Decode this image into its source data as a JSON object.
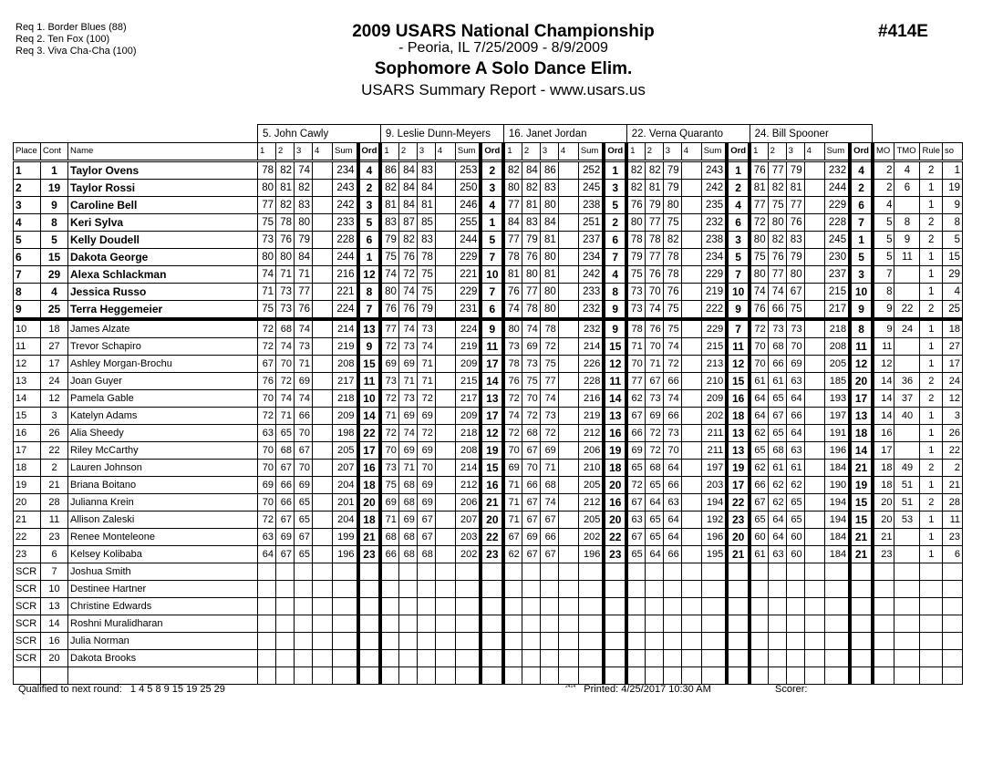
{
  "requirements": [
    "Req  1.  Border Blues (88)",
    "Req  2.  Ten Fox (100)",
    "Req  3.  Viva Cha-Cha (100)"
  ],
  "header": {
    "title": "2009 USARS National Championship",
    "location_dates": "- Peoria, IL  7/25/2009 - 8/9/2009",
    "event": "Sophomore A Solo Dance Elim.",
    "report": "USARS Summary Report - www.usars.us",
    "event_number": "#414E"
  },
  "judges": [
    "5.  John  Cawly",
    "9.  Leslie Dunn-Meyers",
    "16.  Janet Jordan",
    "22.  Verna Quaranto",
    "24.  Bill Spooner"
  ],
  "columns": {
    "place": "Place",
    "cont": "Cont",
    "name": "Name",
    "judge_cols": [
      "1",
      "2",
      "3",
      "4",
      "Sum",
      "Ord"
    ],
    "mo": "MO",
    "tmo": "TMO",
    "rule": "Rule",
    "so": "so"
  },
  "rows": [
    {
      "place": "1",
      "cont": "1",
      "name": "Taylor Ovens",
      "scores": [
        [
          78,
          82,
          74,
          234,
          4
        ],
        [
          86,
          84,
          83,
          253,
          2
        ],
        [
          82,
          84,
          86,
          252,
          1
        ],
        [
          82,
          82,
          79,
          243,
          1
        ],
        [
          76,
          77,
          79,
          232,
          4
        ]
      ],
      "mo": "2",
      "tmo": "4",
      "rule": "2",
      "so": "1"
    },
    {
      "place": "2",
      "cont": "19",
      "name": "Taylor Rossi",
      "scores": [
        [
          80,
          81,
          82,
          243,
          2
        ],
        [
          82,
          84,
          84,
          250,
          3
        ],
        [
          80,
          82,
          83,
          245,
          3
        ],
        [
          82,
          81,
          79,
          242,
          2
        ],
        [
          81,
          82,
          81,
          244,
          2
        ]
      ],
      "mo": "2",
      "tmo": "6",
      "rule": "1",
      "so": "19"
    },
    {
      "place": "3",
      "cont": "9",
      "name": "Caroline Bell",
      "scores": [
        [
          77,
          82,
          83,
          242,
          3
        ],
        [
          81,
          84,
          81,
          246,
          4
        ],
        [
          77,
          81,
          80,
          238,
          5
        ],
        [
          76,
          79,
          80,
          235,
          4
        ],
        [
          77,
          75,
          77,
          229,
          6
        ]
      ],
      "mo": "4",
      "tmo": "",
      "rule": "1",
      "so": "9"
    },
    {
      "place": "4",
      "cont": "8",
      "name": "Keri Sylva",
      "scores": [
        [
          75,
          78,
          80,
          233,
          5
        ],
        [
          83,
          87,
          85,
          255,
          1
        ],
        [
          84,
          83,
          84,
          251,
          2
        ],
        [
          80,
          77,
          75,
          232,
          6
        ],
        [
          72,
          80,
          76,
          228,
          7
        ]
      ],
      "mo": "5",
      "tmo": "8",
      "rule": "2",
      "so": "8"
    },
    {
      "place": "5",
      "cont": "5",
      "name": "Kelly Doudell",
      "scores": [
        [
          73,
          76,
          79,
          228,
          6
        ],
        [
          79,
          82,
          83,
          244,
          5
        ],
        [
          77,
          79,
          81,
          237,
          6
        ],
        [
          78,
          78,
          82,
          238,
          3
        ],
        [
          80,
          82,
          83,
          245,
          1
        ]
      ],
      "mo": "5",
      "tmo": "9",
      "rule": "2",
      "so": "5"
    },
    {
      "place": "6",
      "cont": "15",
      "name": "Dakota George",
      "scores": [
        [
          80,
          80,
          84,
          244,
          1
        ],
        [
          75,
          76,
          78,
          229,
          7
        ],
        [
          78,
          76,
          80,
          234,
          7
        ],
        [
          79,
          77,
          78,
          234,
          5
        ],
        [
          75,
          76,
          79,
          230,
          5
        ]
      ],
      "mo": "5",
      "tmo": "11",
      "rule": "1",
      "so": "15"
    },
    {
      "place": "7",
      "cont": "29",
      "name": "Alexa Schlackman",
      "scores": [
        [
          74,
          71,
          71,
          216,
          12
        ],
        [
          74,
          72,
          75,
          221,
          10
        ],
        [
          81,
          80,
          81,
          242,
          4
        ],
        [
          75,
          76,
          78,
          229,
          7
        ],
        [
          80,
          77,
          80,
          237,
          3
        ]
      ],
      "mo": "7",
      "tmo": "",
      "rule": "1",
      "so": "29"
    },
    {
      "place": "8",
      "cont": "4",
      "name": "Jessica Russo",
      "scores": [
        [
          71,
          73,
          77,
          221,
          8
        ],
        [
          80,
          74,
          75,
          229,
          7
        ],
        [
          76,
          77,
          80,
          233,
          8
        ],
        [
          73,
          70,
          76,
          219,
          10
        ],
        [
          74,
          74,
          67,
          215,
          10
        ]
      ],
      "mo": "8",
      "tmo": "",
      "rule": "1",
      "so": "4"
    },
    {
      "place": "9",
      "cont": "25",
      "name": "Terra Heggemeier",
      "scores": [
        [
          75,
          73,
          76,
          224,
          7
        ],
        [
          76,
          76,
          79,
          231,
          6
        ],
        [
          74,
          78,
          80,
          232,
          9
        ],
        [
          73,
          74,
          75,
          222,
          9
        ],
        [
          76,
          66,
          75,
          217,
          9
        ]
      ],
      "mo": "9",
      "tmo": "22",
      "rule": "2",
      "so": "25"
    },
    {
      "place": "10",
      "cont": "18",
      "name": "James Alzate",
      "scores": [
        [
          72,
          68,
          74,
          214,
          13
        ],
        [
          77,
          74,
          73,
          224,
          9
        ],
        [
          80,
          74,
          78,
          232,
          9
        ],
        [
          78,
          76,
          75,
          229,
          7
        ],
        [
          72,
          73,
          73,
          218,
          8
        ]
      ],
      "mo": "9",
      "tmo": "24",
      "rule": "1",
      "so": "18"
    },
    {
      "place": "11",
      "cont": "27",
      "name": "Trevor Schapiro",
      "scores": [
        [
          72,
          74,
          73,
          219,
          9
        ],
        [
          72,
          73,
          74,
          219,
          11
        ],
        [
          73,
          69,
          72,
          214,
          15
        ],
        [
          71,
          70,
          74,
          215,
          11
        ],
        [
          70,
          68,
          70,
          208,
          11
        ]
      ],
      "mo": "11",
      "tmo": "",
      "rule": "1",
      "so": "27"
    },
    {
      "place": "12",
      "cont": "17",
      "name": "Ashley Morgan-Brochu",
      "scores": [
        [
          67,
          70,
          71,
          208,
          15
        ],
        [
          69,
          69,
          71,
          209,
          17
        ],
        [
          78,
          73,
          75,
          226,
          12
        ],
        [
          70,
          71,
          72,
          213,
          12
        ],
        [
          70,
          66,
          69,
          205,
          12
        ]
      ],
      "mo": "12",
      "tmo": "",
      "rule": "1",
      "so": "17"
    },
    {
      "place": "13",
      "cont": "24",
      "name": "Joan Guyer",
      "scores": [
        [
          76,
          72,
          69,
          217,
          11
        ],
        [
          73,
          71,
          71,
          215,
          14
        ],
        [
          76,
          75,
          77,
          228,
          11
        ],
        [
          77,
          67,
          66,
          210,
          15
        ],
        [
          61,
          61,
          63,
          185,
          20
        ]
      ],
      "mo": "14",
      "tmo": "36",
      "rule": "2",
      "so": "24"
    },
    {
      "place": "14",
      "cont": "12",
      "name": "Pamela Gable",
      "scores": [
        [
          70,
          74,
          74,
          218,
          10
        ],
        [
          72,
          73,
          72,
          217,
          13
        ],
        [
          72,
          70,
          74,
          216,
          14
        ],
        [
          62,
          73,
          74,
          209,
          16
        ],
        [
          64,
          65,
          64,
          193,
          17
        ]
      ],
      "mo": "14",
      "tmo": "37",
      "rule": "2",
      "so": "12"
    },
    {
      "place": "15",
      "cont": "3",
      "name": "Katelyn Adams",
      "scores": [
        [
          72,
          71,
          66,
          209,
          14
        ],
        [
          71,
          69,
          69,
          209,
          17
        ],
        [
          74,
          72,
          73,
          219,
          13
        ],
        [
          67,
          69,
          66,
          202,
          18
        ],
        [
          64,
          67,
          66,
          197,
          13
        ]
      ],
      "mo": "14",
      "tmo": "40",
      "rule": "1",
      "so": "3"
    },
    {
      "place": "16",
      "cont": "26",
      "name": "Alia Sheedy",
      "scores": [
        [
          63,
          65,
          70,
          198,
          22
        ],
        [
          72,
          74,
          72,
          218,
          12
        ],
        [
          72,
          68,
          72,
          212,
          16
        ],
        [
          66,
          72,
          73,
          211,
          13
        ],
        [
          62,
          65,
          64,
          191,
          18
        ]
      ],
      "mo": "16",
      "tmo": "",
      "rule": "1",
      "so": "26"
    },
    {
      "place": "17",
      "cont": "22",
      "name": "Riley McCarthy",
      "scores": [
        [
          70,
          68,
          67,
          205,
          17
        ],
        [
          70,
          69,
          69,
          208,
          19
        ],
        [
          70,
          67,
          69,
          206,
          19
        ],
        [
          69,
          72,
          70,
          211,
          13
        ],
        [
          65,
          68,
          63,
          196,
          14
        ]
      ],
      "mo": "17",
      "tmo": "",
      "rule": "1",
      "so": "22"
    },
    {
      "place": "18",
      "cont": "2",
      "name": "Lauren Johnson",
      "scores": [
        [
          70,
          67,
          70,
          207,
          16
        ],
        [
          73,
          71,
          70,
          214,
          15
        ],
        [
          69,
          70,
          71,
          210,
          18
        ],
        [
          65,
          68,
          64,
          197,
          19
        ],
        [
          62,
          61,
          61,
          184,
          21
        ]
      ],
      "mo": "18",
      "tmo": "49",
      "rule": "2",
      "so": "2"
    },
    {
      "place": "19",
      "cont": "21",
      "name": "Briana Boitano",
      "scores": [
        [
          69,
          66,
          69,
          204,
          18
        ],
        [
          75,
          68,
          69,
          212,
          16
        ],
        [
          71,
          66,
          68,
          205,
          20
        ],
        [
          72,
          65,
          66,
          203,
          17
        ],
        [
          66,
          62,
          62,
          190,
          19
        ]
      ],
      "mo": "18",
      "tmo": "51",
      "rule": "1",
      "so": "21"
    },
    {
      "place": "20",
      "cont": "28",
      "name": "Julianna Krein",
      "scores": [
        [
          70,
          66,
          65,
          201,
          20
        ],
        [
          69,
          68,
          69,
          206,
          21
        ],
        [
          71,
          67,
          74,
          212,
          16
        ],
        [
          67,
          64,
          63,
          194,
          22
        ],
        [
          67,
          62,
          65,
          194,
          15
        ]
      ],
      "mo": "20",
      "tmo": "51",
      "rule": "2",
      "so": "28"
    },
    {
      "place": "21",
      "cont": "11",
      "name": "Allison Zaleski",
      "scores": [
        [
          72,
          67,
          65,
          204,
          18
        ],
        [
          71,
          69,
          67,
          207,
          20
        ],
        [
          71,
          67,
          67,
          205,
          20
        ],
        [
          63,
          65,
          64,
          192,
          23
        ],
        [
          65,
          64,
          65,
          194,
          15
        ]
      ],
      "mo": "20",
      "tmo": "53",
      "rule": "1",
      "so": "11"
    },
    {
      "place": "22",
      "cont": "23",
      "name": "Renee Monteleone",
      "scores": [
        [
          63,
          69,
          67,
          199,
          21
        ],
        [
          68,
          68,
          67,
          203,
          22
        ],
        [
          67,
          69,
          66,
          202,
          22
        ],
        [
          67,
          65,
          64,
          196,
          20
        ],
        [
          60,
          64,
          60,
          184,
          21
        ]
      ],
      "mo": "21",
      "tmo": "",
      "rule": "1",
      "so": "23"
    },
    {
      "place": "23",
      "cont": "6",
      "name": "Kelsey Kolibaba",
      "scores": [
        [
          64,
          67,
          65,
          196,
          23
        ],
        [
          66,
          68,
          68,
          202,
          23
        ],
        [
          62,
          67,
          67,
          196,
          23
        ],
        [
          65,
          64,
          66,
          195,
          21
        ],
        [
          61,
          63,
          60,
          184,
          21
        ]
      ],
      "mo": "23",
      "tmo": "",
      "rule": "1",
      "so": "6"
    },
    {
      "place": "SCR",
      "cont": "7",
      "name": "Joshua Smith"
    },
    {
      "place": "SCR",
      "cont": "10",
      "name": "Destinee Hartner"
    },
    {
      "place": "SCR",
      "cont": "13",
      "name": "Christine Edwards"
    },
    {
      "place": "SCR",
      "cont": "14",
      "name": "Roshni Muralidharan"
    },
    {
      "place": "SCR",
      "cont": "16",
      "name": "Julia Norman"
    },
    {
      "place": "SCR",
      "cont": "20",
      "name": "Dakota Brooks"
    },
    {
      "place": "",
      "cont": "",
      "name": ""
    }
  ],
  "footer": {
    "qualified_label": "Qualified to next round:",
    "qualified_list": "1 4 5 8 9 15 19 25 29",
    "tiny_mark": "2414",
    "printed": "Printed:  4/25/2017  10:30 AM",
    "scorer": "Scorer:"
  }
}
